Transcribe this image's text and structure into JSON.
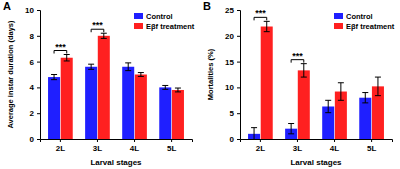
{
  "chart_data": [
    {
      "type": "bar",
      "title": "A",
      "x_label": "Larval stages",
      "y_label": "Average instar duration (days)",
      "categories": [
        "2L",
        "3L",
        "4L",
        "5L"
      ],
      "series": [
        {
          "name": "Control",
          "color": "#1f1fff",
          "values": [
            4.8,
            5.6,
            5.6,
            4.0
          ],
          "errors": [
            0.2,
            0.2,
            0.3,
            0.15
          ]
        },
        {
          "name": "Eβf treatment",
          "color": "#ff2020",
          "values": [
            6.3,
            8.0,
            5.0,
            3.8
          ],
          "errors": [
            0.25,
            0.2,
            0.15,
            0.15
          ]
        }
      ],
      "ylim": [
        0,
        10
      ],
      "yticks": [
        0,
        2,
        4,
        6,
        8,
        10
      ],
      "grid": false,
      "legend": "upper right",
      "annotations": [
        {
          "text": "***",
          "category": "2L"
        },
        {
          "text": "***",
          "category": "3L"
        }
      ]
    },
    {
      "type": "bar",
      "title": "B",
      "x_label": "Larval stages",
      "y_label": "Mortalities (%)",
      "categories": [
        "2L",
        "3L",
        "4L",
        "5L"
      ],
      "series": [
        {
          "name": "Control",
          "color": "#1f1fff",
          "values": [
            1.0,
            2.0,
            6.3,
            8.0
          ],
          "errors": [
            1.2,
            1.0,
            1.2,
            1.0
          ]
        },
        {
          "name": "Eβf treatment",
          "color": "#ff2020",
          "values": [
            21.8,
            13.3,
            9.2,
            10.2
          ],
          "errors": [
            1.0,
            1.3,
            1.7,
            1.8
          ]
        }
      ],
      "ylim": [
        0,
        25
      ],
      "yticks": [
        0,
        5,
        10,
        15,
        20,
        25
      ],
      "grid": false,
      "legend": "upper right",
      "annotations": [
        {
          "text": "***",
          "category": "2L"
        },
        {
          "text": "***",
          "category": "3L"
        }
      ]
    }
  ]
}
